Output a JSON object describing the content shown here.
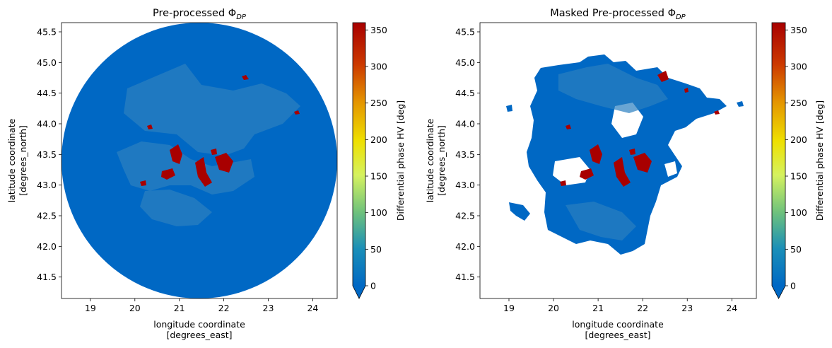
{
  "chart_data": [
    {
      "type": "heatmap",
      "title_text": "Pre-processed Φ",
      "title_subscript": "DP",
      "xlabel_line1": "longitude coordinate",
      "xlabel_line2": "[degrees_east]",
      "ylabel_line1": "latitude coordinate",
      "ylabel_line2": "[degrees_north]",
      "xlim": [
        18.35,
        24.55
      ],
      "ylim": [
        41.15,
        45.65
      ],
      "xticks": [
        19,
        20,
        21,
        22,
        23,
        24
      ],
      "yticks": [
        41.5,
        42.0,
        42.5,
        43.0,
        43.5,
        44.0,
        44.5,
        45.0,
        45.5
      ],
      "field_extent": "circular",
      "colorbar": {
        "label": "Differential phase HV [deg]",
        "range": [
          0,
          360
        ],
        "ticks": [
          0,
          50,
          100,
          150,
          200,
          250,
          300,
          350
        ],
        "extend": "min"
      }
    },
    {
      "type": "heatmap",
      "title_text": "Masked Pre-processed Φ",
      "title_subscript": "DP",
      "xlabel_line1": "longitude coordinate",
      "xlabel_line2": "[degrees_east]",
      "ylabel_line1": "latitude coordinate",
      "ylabel_line2": "[degrees_north]",
      "xlim": [
        18.35,
        24.55
      ],
      "ylim": [
        41.15,
        45.65
      ],
      "xticks": [
        19,
        20,
        21,
        22,
        23,
        24
      ],
      "yticks": [
        41.5,
        42.0,
        42.5,
        43.0,
        43.5,
        44.0,
        44.5,
        45.0,
        45.5
      ],
      "field_extent": "masked",
      "colorbar": {
        "label": "Differential phase HV [deg]",
        "range": [
          0,
          360
        ],
        "ticks": [
          0,
          50,
          100,
          150,
          200,
          250,
          300,
          350
        ],
        "extend": "min"
      }
    }
  ],
  "colors": {
    "low": "#0068c4",
    "mid_green": "#82c97a",
    "yellow": "#f2e200",
    "orange": "#e58a00",
    "high": "#a80000",
    "echo_light": "#2a7fc0"
  }
}
